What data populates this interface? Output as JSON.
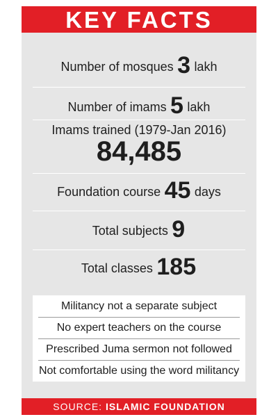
{
  "header": {
    "title": "KEY FACTS"
  },
  "facts": [
    {
      "label": "Number of mosques",
      "value": "3",
      "unit": "lakh"
    },
    {
      "label": "Number of imams",
      "value": "5",
      "unit": "lakh"
    },
    {
      "label": "Imams trained (1979-Jan 2016)",
      "value": "84,485"
    },
    {
      "label": "Foundation course",
      "value": "45",
      "unit": "days"
    },
    {
      "label": "Total subjects",
      "value": "9"
    },
    {
      "label": "Total classes",
      "value": "185"
    }
  ],
  "findings": [
    "Militancy not a separate subject",
    "No expert teachers on the course",
    "Prescribed Juma sermon not followed",
    "Not comfortable using the word militancy"
  ],
  "footer": {
    "source_label": "SOURCE:",
    "source_name": "ISLAMIC FOUNDATION"
  },
  "colors": {
    "accent": "#e21f26",
    "panel": "#e6e6e6",
    "text": "#1e1e1e"
  }
}
